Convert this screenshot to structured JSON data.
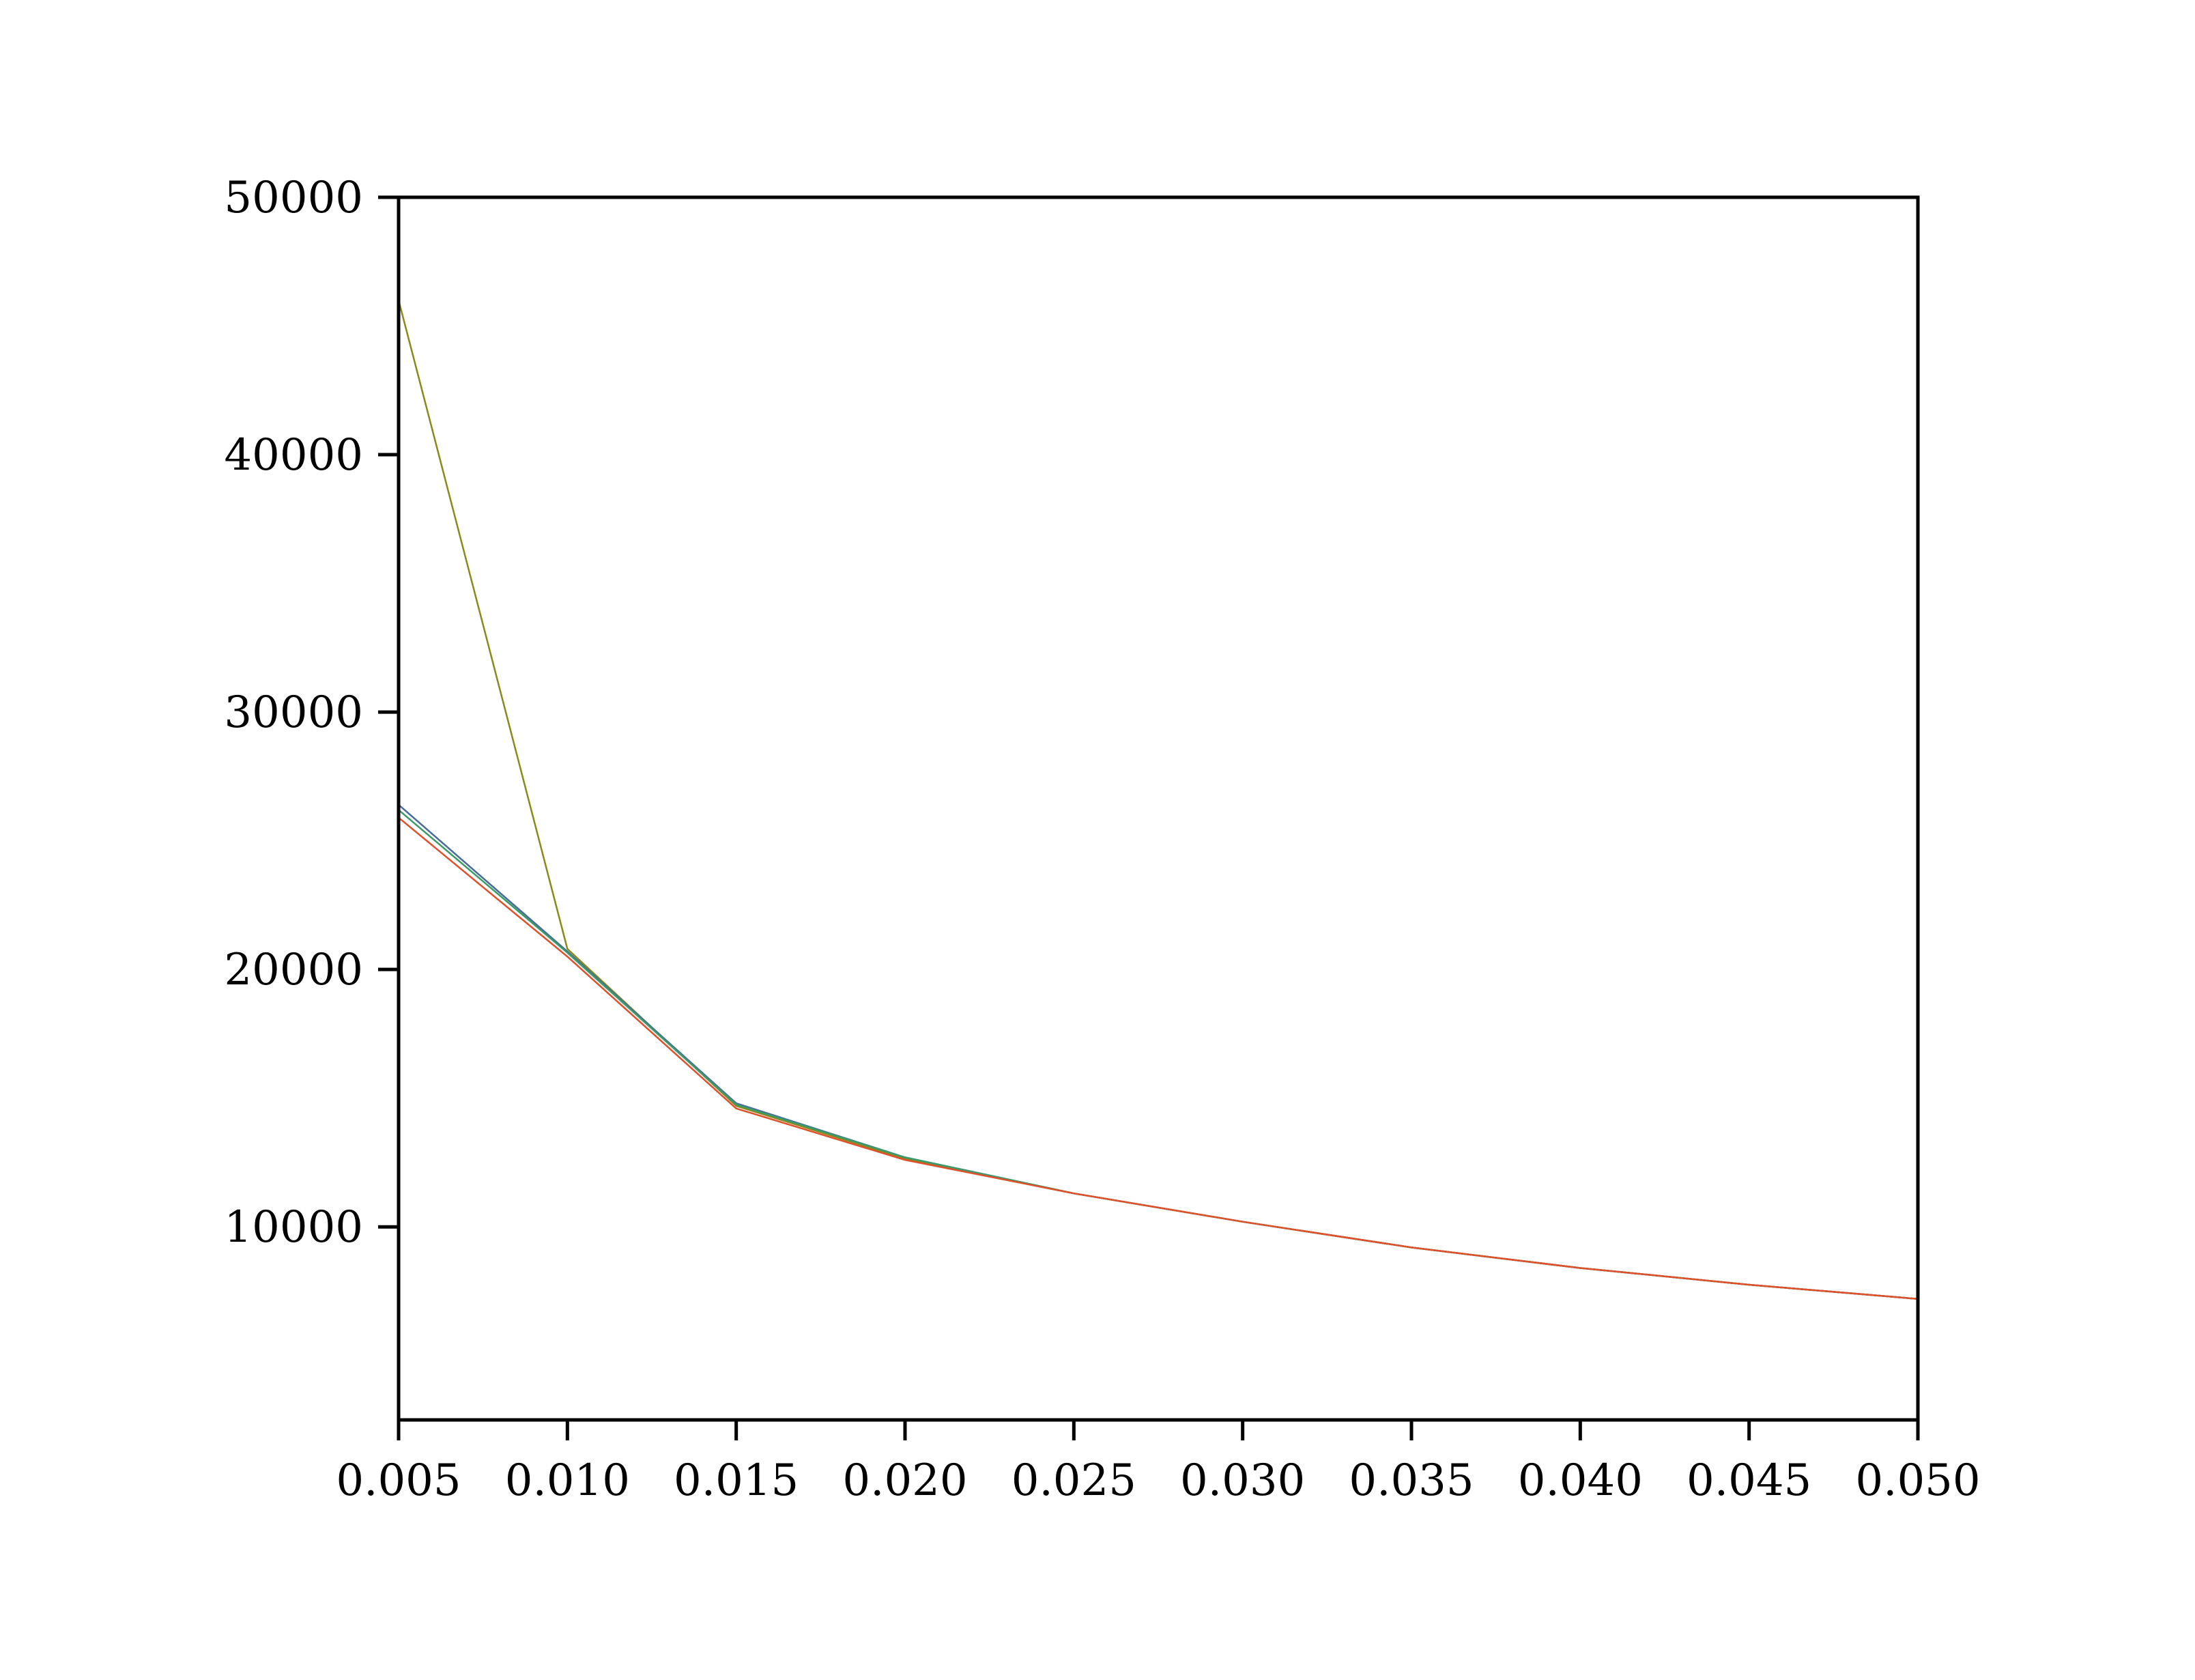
{
  "chart_data": {
    "type": "line",
    "title": "",
    "xlabel": "",
    "ylabel": "",
    "xlim": [
      0.005,
      0.05
    ],
    "ylim": [
      2500,
      50000
    ],
    "x_ticks": [
      0.005,
      0.01,
      0.015,
      0.02,
      0.025,
      0.03,
      0.035,
      0.04,
      0.045,
      0.05
    ],
    "x_tick_labels": [
      "0.005",
      "0.010",
      "0.015",
      "0.020",
      "0.025",
      "0.030",
      "0.035",
      "0.040",
      "0.045",
      "0.050"
    ],
    "y_ticks": [
      10000,
      20000,
      30000,
      40000,
      50000
    ],
    "y_tick_labels": [
      "10000",
      "20000",
      "30000",
      "40000",
      "50000"
    ],
    "grid": false,
    "x": [
      0.005,
      0.01,
      0.015,
      0.02,
      0.025,
      0.03,
      0.035,
      0.04,
      0.045,
      0.05
    ],
    "series": [
      {
        "color": "#8a8a1a",
        "values": [
          46000,
          20800,
          14700,
          12650,
          11300,
          10200,
          9200,
          8400,
          7750,
          7200
        ]
      },
      {
        "color": "#4a6a9a",
        "values": [
          26400,
          20700,
          14800,
          12700,
          11300,
          10200,
          9200,
          8400,
          7750,
          7200
        ]
      },
      {
        "color": "#3a9a6a",
        "values": [
          26200,
          20650,
          14750,
          12700,
          11300,
          10200,
          9200,
          8400,
          7750,
          7200
        ]
      },
      {
        "color": "#e0502a",
        "values": [
          25900,
          20500,
          14600,
          12600,
          11300,
          10200,
          9200,
          8400,
          7750,
          7200
        ]
      }
    ]
  }
}
